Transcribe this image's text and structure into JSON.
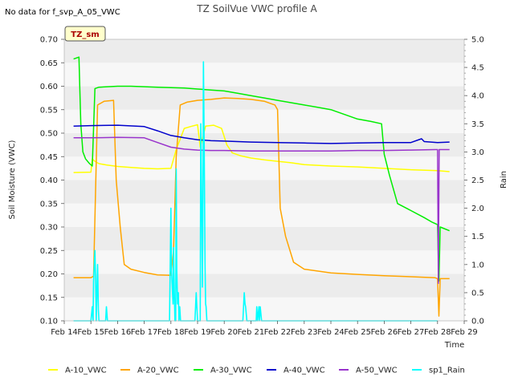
{
  "chart_data": {
    "type": "line",
    "title": "TZ SoilVue VWC profile A",
    "note": "No data for f_svp_A_05_VWC",
    "station_badge": "TZ_sm",
    "xlabel": "Time",
    "ylabel": "Soil Moisture (VWC)",
    "y2label": "Rain",
    "x_unit": "day of February",
    "xlim": [
      14,
      29
    ],
    "ylim": [
      0.1,
      0.7
    ],
    "y2lim": [
      0.0,
      5.0
    ],
    "xticks": [
      14,
      15,
      16,
      17,
      18,
      19,
      20,
      21,
      22,
      23,
      24,
      25,
      26,
      27,
      28,
      29
    ],
    "xtick_labels": [
      "Feb 14",
      "Feb 15",
      "Feb 16",
      "Feb 17",
      "Feb 18",
      "Feb 19",
      "Feb 20",
      "Feb 21",
      "Feb 22",
      "Feb 23",
      "Feb 24",
      "Feb 25",
      "Feb 26",
      "Feb 27",
      "Feb 28",
      "Feb 29"
    ],
    "yticks": [
      0.1,
      0.15,
      0.2,
      0.25,
      0.3,
      0.35,
      0.4,
      0.45,
      0.5,
      0.55,
      0.6,
      0.65,
      0.7
    ],
    "ytick_labels": [
      "0.10",
      "0.15",
      "0.20",
      "0.25",
      "0.30",
      "0.35",
      "0.40",
      "0.45",
      "0.50",
      "0.55",
      "0.60",
      "0.65",
      "0.70"
    ],
    "y2ticks": [
      0.0,
      0.5,
      1.0,
      1.5,
      2.0,
      2.5,
      3.0,
      3.5,
      4.0,
      4.5,
      5.0
    ],
    "y2tick_labels": [
      "0.0",
      "0.5",
      "1.0",
      "1.5",
      "2.0",
      "2.5",
      "3.0",
      "3.5",
      "4.0",
      "4.5",
      "5.0"
    ],
    "series": [
      {
        "name": "A-10_VWC",
        "color": "#ffff00",
        "axis": "left",
        "x": [
          14.35,
          15.0,
          15.05,
          15.15,
          15.3,
          15.6,
          16.0,
          16.5,
          17.0,
          17.5,
          18.0,
          18.2,
          18.5,
          18.8,
          19.0,
          19.1,
          19.3,
          19.6,
          19.9,
          20.1,
          20.3,
          20.6,
          21.0,
          21.5,
          22.0,
          22.5,
          23.0,
          24.0,
          25.0,
          26.0,
          27.0,
          28.0,
          28.45
        ],
        "values": [
          0.416,
          0.417,
          0.445,
          0.44,
          0.435,
          0.432,
          0.429,
          0.427,
          0.425,
          0.424,
          0.425,
          0.465,
          0.51,
          0.515,
          0.518,
          0.47,
          0.515,
          0.517,
          0.51,
          0.475,
          0.458,
          0.452,
          0.447,
          0.443,
          0.44,
          0.437,
          0.433,
          0.43,
          0.428,
          0.425,
          0.422,
          0.42,
          0.418
        ]
      },
      {
        "name": "A-20_VWC",
        "color": "#ffa500",
        "axis": "left",
        "x": [
          14.35,
          15.0,
          15.1,
          15.25,
          15.5,
          15.85,
          15.95,
          16.1,
          16.25,
          16.5,
          17.0,
          17.5,
          18.0,
          18.1,
          18.2,
          18.35,
          18.6,
          19.0,
          19.5,
          20.0,
          20.5,
          21.0,
          21.5,
          21.9,
          22.0,
          22.1,
          22.3,
          22.6,
          23.0,
          24.0,
          25.0,
          26.0,
          27.0,
          27.9,
          28.0,
          28.05,
          28.1,
          28.45
        ],
        "values": [
          0.192,
          0.192,
          0.195,
          0.56,
          0.568,
          0.57,
          0.4,
          0.3,
          0.22,
          0.21,
          0.203,
          0.198,
          0.197,
          0.25,
          0.45,
          0.56,
          0.566,
          0.57,
          0.572,
          0.575,
          0.574,
          0.572,
          0.568,
          0.56,
          0.55,
          0.34,
          0.28,
          0.225,
          0.21,
          0.202,
          0.199,
          0.196,
          0.194,
          0.192,
          0.19,
          0.11,
          0.19,
          0.19
        ]
      },
      {
        "name": "A-30_VWC",
        "color": "#00ee00",
        "axis": "left",
        "x": [
          14.35,
          14.55,
          14.62,
          14.7,
          14.8,
          14.95,
          15.05,
          15.15,
          15.3,
          16.0,
          16.5,
          17.0,
          17.5,
          18.0,
          18.5,
          19.0,
          19.5,
          20.0,
          20.5,
          21.0,
          21.5,
          22.0,
          22.5,
          23.0,
          23.5,
          24.0,
          24.5,
          25.0,
          25.5,
          25.9,
          26.0,
          26.2,
          26.5,
          27.0,
          27.5,
          27.8,
          28.0,
          28.05,
          28.1,
          28.45
        ],
        "values": [
          0.658,
          0.662,
          0.52,
          0.46,
          0.445,
          0.435,
          0.43,
          0.595,
          0.598,
          0.6,
          0.6,
          0.599,
          0.598,
          0.597,
          0.596,
          0.594,
          0.592,
          0.59,
          0.585,
          0.58,
          0.575,
          0.57,
          0.565,
          0.56,
          0.555,
          0.55,
          0.54,
          0.53,
          0.525,
          0.52,
          0.455,
          0.41,
          0.35,
          0.335,
          0.32,
          0.31,
          0.305,
          0.185,
          0.3,
          0.292
        ]
      },
      {
        "name": "A-40_VWC",
        "color": "#0000cc",
        "axis": "left",
        "x": [
          14.35,
          15.0,
          16.0,
          17.0,
          17.5,
          18.0,
          18.5,
          19.0,
          19.5,
          20.0,
          21.0,
          22.0,
          23.0,
          24.0,
          25.0,
          26.0,
          27.0,
          27.4,
          27.5,
          28.0,
          28.45
        ],
        "values": [
          0.515,
          0.516,
          0.517,
          0.514,
          0.505,
          0.495,
          0.49,
          0.486,
          0.484,
          0.483,
          0.481,
          0.48,
          0.479,
          0.478,
          0.479,
          0.48,
          0.48,
          0.488,
          0.482,
          0.48,
          0.481
        ]
      },
      {
        "name": "A-50_VWC",
        "color": "#9933cc",
        "axis": "left",
        "x": [
          14.35,
          15.0,
          16.0,
          17.0,
          17.5,
          18.0,
          18.5,
          19.0,
          19.5,
          20.0,
          21.0,
          22.0,
          23.0,
          24.0,
          25.0,
          26.0,
          27.0,
          27.9,
          28.0,
          28.03,
          28.06,
          28.45
        ],
        "values": [
          0.49,
          0.49,
          0.491,
          0.49,
          0.48,
          0.47,
          0.466,
          0.464,
          0.463,
          0.463,
          0.462,
          0.462,
          0.462,
          0.462,
          0.463,
          0.463,
          0.464,
          0.465,
          0.465,
          0.18,
          0.465,
          0.465
        ]
      },
      {
        "name": "sp1_Rain",
        "color": "#00ffff",
        "axis": "right",
        "x": [
          14.35,
          15.0,
          15.05,
          15.08,
          15.1,
          15.15,
          15.18,
          15.2,
          15.25,
          15.28,
          15.3,
          15.55,
          15.58,
          15.62,
          17.9,
          17.95,
          18.0,
          18.02,
          18.05,
          18.08,
          18.1,
          18.12,
          18.15,
          18.18,
          18.2,
          18.22,
          18.25,
          18.28,
          18.3,
          18.33,
          18.36,
          18.4,
          18.45,
          18.9,
          18.95,
          19.0,
          19.1,
          19.12,
          19.15,
          19.18,
          19.2,
          19.22,
          19.25,
          19.28,
          19.3,
          19.32,
          19.35,
          19.38,
          19.4,
          19.5,
          20.0,
          20.7,
          20.75,
          20.78,
          20.8,
          20.85,
          20.9,
          21.0,
          21.2,
          21.22,
          21.25,
          21.3,
          21.32,
          21.35,
          21.4,
          21.42,
          22.0,
          23.0,
          24.0,
          25.0,
          26.0,
          27.0,
          28.0
        ],
        "values": [
          0.0,
          0.0,
          0.25,
          0.0,
          0.7,
          1.25,
          0.6,
          0.0,
          1.0,
          0.2,
          0.0,
          0.0,
          0.25,
          0.0,
          0.0,
          0.0,
          2.0,
          0.9,
          0.6,
          0.3,
          1.3,
          0.7,
          0.0,
          0.0,
          2.7,
          0.9,
          0.3,
          0.5,
          0.0,
          0.25,
          0.0,
          0.0,
          0.0,
          0.0,
          0.5,
          0.0,
          0.0,
          3.5,
          2.2,
          0.6,
          1.8,
          4.6,
          3.0,
          1.0,
          0.3,
          0.25,
          0.0,
          0.0,
          0.0,
          0.0,
          0.0,
          0.0,
          0.5,
          0.3,
          0.25,
          0.0,
          0.0,
          0.0,
          0.0,
          0.25,
          0.0,
          0.25,
          0.0,
          0.25,
          0.0,
          0.0,
          0.0,
          0.0,
          0.0,
          0.0,
          0.0,
          0.0,
          0.0
        ]
      }
    ]
  }
}
